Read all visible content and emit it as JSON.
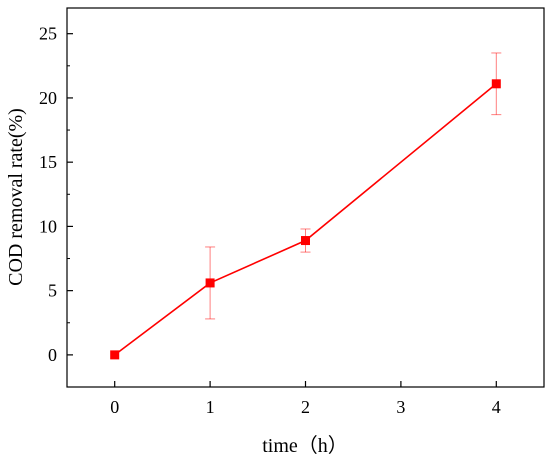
{
  "chart_data": {
    "type": "line",
    "title": "",
    "xlabel": "time（h）",
    "ylabel": "COD removal rate(%)",
    "categories": [
      "0",
      "1",
      "2",
      "3",
      "4"
    ],
    "xlim": [
      -0.5,
      4.5
    ],
    "ylim": [
      -2.5,
      27
    ],
    "yticks": [
      0,
      5,
      10,
      15,
      20,
      25
    ],
    "grid": false,
    "legend": "none",
    "series": [
      {
        "x": [
          0,
          1,
          2,
          4
        ],
        "values": [
          0,
          5.6,
          8.9,
          21.1
        ],
        "error": [
          0,
          2.8,
          0.9,
          2.4
        ],
        "color": "#ff0000",
        "marker": "square"
      }
    ]
  }
}
